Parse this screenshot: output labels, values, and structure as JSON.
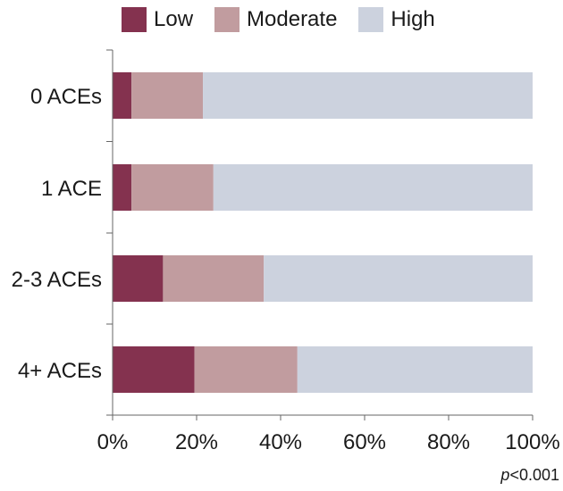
{
  "legend": [
    {
      "label": "Low",
      "color": "#84324f"
    },
    {
      "label": "Moderate",
      "color": "#c19c9f"
    },
    {
      "label": "High",
      "color": "#ccd2de"
    }
  ],
  "footnote": {
    "p_symbol": "p",
    "rest": "<0.001"
  },
  "chart_data": {
    "type": "bar",
    "orientation": "horizontal",
    "stacked": true,
    "categories": [
      "0 ACEs",
      "1 ACE",
      "2-3 ACEs",
      "4+ ACEs"
    ],
    "series": [
      {
        "name": "Low",
        "color": "#84324f",
        "values": [
          4.5,
          4.5,
          12,
          19.5
        ]
      },
      {
        "name": "Moderate",
        "color": "#c19c9f",
        "values": [
          17,
          19.5,
          24,
          24.5
        ]
      },
      {
        "name": "High",
        "color": "#ccd2de",
        "values": [
          78.5,
          76,
          64,
          56
        ]
      }
    ],
    "xlim": [
      0,
      100
    ],
    "xticks": [
      0,
      20,
      40,
      60,
      80,
      100
    ],
    "xtick_labels": [
      "0%",
      "20%",
      "40%",
      "60%",
      "80%",
      "100%"
    ],
    "grid": false,
    "legend_position": "top"
  }
}
